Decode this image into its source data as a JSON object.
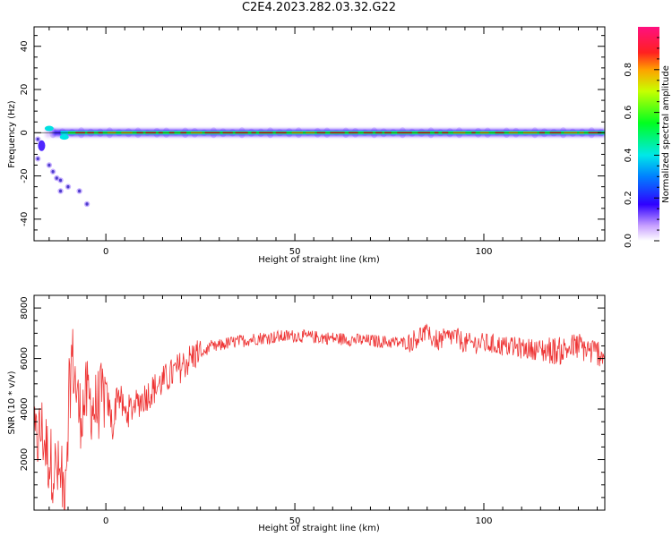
{
  "title": "C2E4.2023.282.03.32.G22",
  "chart_data": [
    {
      "type": "heatmap",
      "xlabel": "Height of straight line (km)",
      "ylabel": "Frequency (Hz)",
      "xlim": [
        -19,
        132
      ],
      "ylim": [
        -50,
        49
      ],
      "x_ticks": [
        "0",
        "50",
        "100"
      ],
      "y_ticks": [
        "-40",
        "-20",
        "0",
        "20",
        "40"
      ],
      "colorbar": {
        "label": "Normalized spectral amplitude",
        "range": [
          0,
          1
        ],
        "ticks": [
          "0.0",
          "0.2",
          "0.4",
          "0.6",
          "0.8"
        ]
      },
      "ridge_frequency_hz": 0,
      "scatter_blobs": [
        [
          -18,
          -3
        ],
        [
          -18,
          -12
        ],
        [
          -15,
          -15
        ],
        [
          -14,
          -18
        ],
        [
          -13,
          -21
        ],
        [
          -12,
          -22
        ],
        [
          -12,
          -27
        ],
        [
          -10,
          -25
        ],
        [
          -7,
          -27
        ],
        [
          -5,
          -33
        ]
      ],
      "grid": false
    },
    {
      "type": "line",
      "xlabel": "Height of straight line (km)",
      "ylabel": "SNR (10 * v/v)",
      "xlim": [
        -19,
        132
      ],
      "ylim": [
        0,
        8500
      ],
      "x_ticks": [
        "0",
        "50",
        "100"
      ],
      "y_ticks": [
        "2000",
        "4000",
        "6000",
        "8000"
      ],
      "series": [
        {
          "color": "#ee3333",
          "x": [
            -19,
            -17,
            -15,
            -13,
            -11,
            -10,
            -9,
            -7,
            -5,
            -3,
            -1,
            0,
            2,
            3,
            5,
            8,
            12,
            16,
            20,
            24,
            28,
            32,
            40,
            50,
            60,
            70,
            80,
            84,
            88,
            92,
            95,
            100,
            110,
            120,
            125,
            128,
            132
          ],
          "y": [
            2500,
            3200,
            2000,
            1500,
            900,
            3500,
            6200,
            3800,
            4500,
            4000,
            4400,
            4600,
            3200,
            4800,
            3800,
            4200,
            4700,
            5200,
            5700,
            6200,
            6400,
            6600,
            6800,
            6900,
            6800,
            6700,
            6600,
            7000,
            6700,
            6900,
            6600,
            6600,
            6400,
            6300,
            6500,
            6300,
            6200
          ]
        }
      ],
      "grid": false
    }
  ]
}
